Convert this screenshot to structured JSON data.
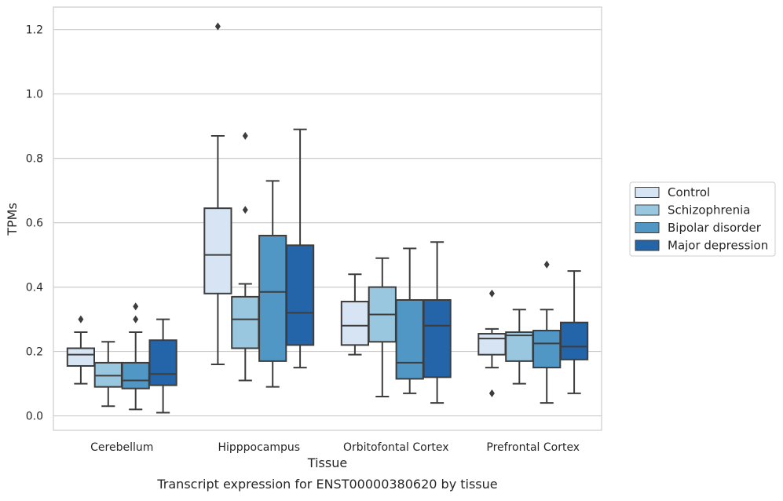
{
  "chart_data": {
    "type": "box",
    "xlabel": "Tissue",
    "ylabel": "TPMs",
    "caption": "Transcript expression for ENST00000380620 by tissue",
    "categories": [
      "Cerebellum",
      "Hipppocampus",
      "Orbitofontal Cortex",
      "Prefrontal Cortex"
    ],
    "ylim": [
      -0.045,
      1.27
    ],
    "yticks": [
      0.0,
      0.2,
      0.4,
      0.6,
      0.8,
      1.0,
      1.2
    ],
    "ytick_labels": [
      "0.0",
      "0.2",
      "0.4",
      "0.6",
      "0.8",
      "1.0",
      "1.2"
    ],
    "grid": "horizontal",
    "legend_position": "right",
    "series": [
      {
        "name": "Control",
        "color": "#d6e4f3",
        "boxes": [
          {
            "category": "Cerebellum",
            "whisker_low": 0.1,
            "q1": 0.155,
            "median": 0.19,
            "q3": 0.21,
            "whisker_high": 0.26,
            "outliers": [
              0.3
            ]
          },
          {
            "category": "Hipppocampus",
            "whisker_low": 0.16,
            "q1": 0.38,
            "median": 0.5,
            "q3": 0.645,
            "whisker_high": 0.87,
            "outliers": [
              1.21
            ]
          },
          {
            "category": "Orbitofontal Cortex",
            "whisker_low": 0.19,
            "q1": 0.22,
            "median": 0.28,
            "q3": 0.355,
            "whisker_high": 0.44,
            "outliers": []
          },
          {
            "category": "Prefrontal Cortex",
            "whisker_low": 0.15,
            "q1": 0.19,
            "median": 0.24,
            "q3": 0.255,
            "whisker_high": 0.27,
            "outliers": [
              0.38,
              0.07
            ]
          }
        ]
      },
      {
        "name": "Schizophrenia",
        "color": "#9ac7e0",
        "boxes": [
          {
            "category": "Cerebellum",
            "whisker_low": 0.03,
            "q1": 0.09,
            "median": 0.125,
            "q3": 0.165,
            "whisker_high": 0.23,
            "outliers": []
          },
          {
            "category": "Hipppocampus",
            "whisker_low": 0.11,
            "q1": 0.21,
            "median": 0.3,
            "q3": 0.37,
            "whisker_high": 0.41,
            "outliers": [
              0.87,
              0.64
            ]
          },
          {
            "category": "Orbitofontal Cortex",
            "whisker_low": 0.06,
            "q1": 0.23,
            "median": 0.315,
            "q3": 0.4,
            "whisker_high": 0.49,
            "outliers": []
          },
          {
            "category": "Prefrontal Cortex",
            "whisker_low": 0.1,
            "q1": 0.17,
            "median": 0.25,
            "q3": 0.26,
            "whisker_high": 0.33,
            "outliers": []
          }
        ]
      },
      {
        "name": "Bipolar disorder",
        "color": "#5097c6",
        "boxes": [
          {
            "category": "Cerebellum",
            "whisker_low": 0.02,
            "q1": 0.085,
            "median": 0.11,
            "q3": 0.165,
            "whisker_high": 0.26,
            "outliers": [
              0.34,
              0.3
            ]
          },
          {
            "category": "Hipppocampus",
            "whisker_low": 0.09,
            "q1": 0.17,
            "median": 0.385,
            "q3": 0.56,
            "whisker_high": 0.73,
            "outliers": []
          },
          {
            "category": "Orbitofontal Cortex",
            "whisker_low": 0.07,
            "q1": 0.115,
            "median": 0.165,
            "q3": 0.36,
            "whisker_high": 0.52,
            "outliers": []
          },
          {
            "category": "Prefrontal Cortex",
            "whisker_low": 0.04,
            "q1": 0.15,
            "median": 0.225,
            "q3": 0.265,
            "whisker_high": 0.33,
            "outliers": [
              0.47
            ]
          }
        ]
      },
      {
        "name": "Major depression",
        "color": "#2464a8",
        "boxes": [
          {
            "category": "Cerebellum",
            "whisker_low": 0.01,
            "q1": 0.095,
            "median": 0.13,
            "q3": 0.235,
            "whisker_high": 0.3,
            "outliers": []
          },
          {
            "category": "Hipppocampus",
            "whisker_low": 0.15,
            "q1": 0.22,
            "median": 0.32,
            "q3": 0.53,
            "whisker_high": 0.89,
            "outliers": []
          },
          {
            "category": "Orbitofontal Cortex",
            "whisker_low": 0.04,
            "q1": 0.12,
            "median": 0.28,
            "q3": 0.36,
            "whisker_high": 0.54,
            "outliers": []
          },
          {
            "category": "Prefrontal Cortex",
            "whisker_low": 0.07,
            "q1": 0.175,
            "median": 0.215,
            "q3": 0.29,
            "whisker_high": 0.45,
            "outliers": []
          }
        ]
      }
    ]
  }
}
